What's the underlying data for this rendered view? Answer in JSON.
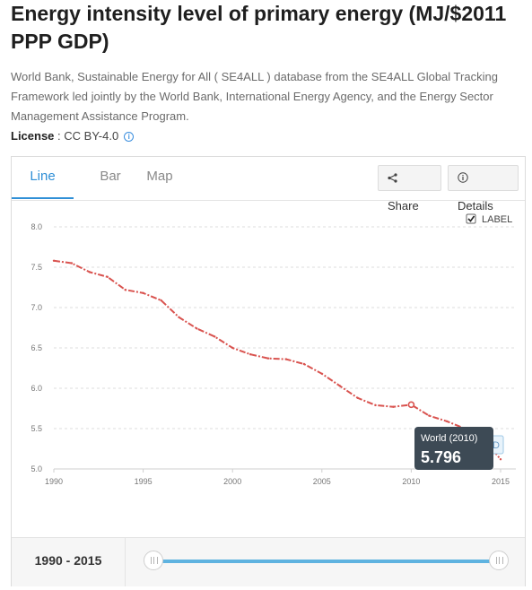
{
  "page": {
    "title": "Energy intensity level of primary energy (MJ/$2011 PPP GDP)",
    "description": "World Bank, Sustainable Energy for All ( SE4ALL ) database from the SE4ALL Global Tracking Framework led jointly by the World Bank, International Energy Agency, and the Energy Sector Management Assistance Program.",
    "license_key": "License",
    "license_sep": " : ",
    "license_value": "CC BY-4.0",
    "info_icon": "i"
  },
  "tabs": [
    {
      "label": "Line",
      "active": true
    },
    {
      "label": "Bar",
      "active": false
    },
    {
      "label": "Map",
      "active": false
    }
  ],
  "actions": {
    "share_label": "Share",
    "details_label": "Details",
    "share_icon": "share-icon",
    "details_icon": "info-icon"
  },
  "label_toggle": {
    "label": "LABEL",
    "checked": true
  },
  "colors": {
    "series": "#d9534f",
    "accent": "#2f8fd6",
    "tooltip_bg": "#3d4a55"
  },
  "tooltip": {
    "title": "World (2010)",
    "value": "5.796",
    "year": 2010
  },
  "end_label": "D",
  "range": {
    "label": "1990 - 2015",
    "start": 1990,
    "end": 2015
  },
  "chart_data": {
    "type": "line",
    "x": [
      1990,
      1991,
      1992,
      1993,
      1994,
      1995,
      1996,
      1997,
      1998,
      1999,
      2000,
      2001,
      2002,
      2003,
      2004,
      2005,
      2006,
      2007,
      2008,
      2009,
      2010,
      2011,
      2012,
      2013,
      2014,
      2015
    ],
    "series": [
      {
        "name": "World",
        "values": [
          7.58,
          7.55,
          7.44,
          7.38,
          7.22,
          7.18,
          7.09,
          6.88,
          6.74,
          6.64,
          6.5,
          6.42,
          6.37,
          6.36,
          6.3,
          6.18,
          6.03,
          5.88,
          5.79,
          5.77,
          5.796,
          5.66,
          5.59,
          5.5,
          5.38,
          5.12
        ]
      }
    ],
    "yticks": [
      "5.0",
      "5.5",
      "6.0",
      "6.5",
      "7.0",
      "7.5",
      "8.0"
    ],
    "xticks": [
      "1990",
      "1995",
      "2000",
      "2005",
      "2010",
      "2015"
    ],
    "ylim": [
      5.0,
      8.0
    ],
    "xlim": [
      1990,
      2015
    ],
    "grid": true,
    "title": "",
    "xlabel": "",
    "ylabel": ""
  }
}
